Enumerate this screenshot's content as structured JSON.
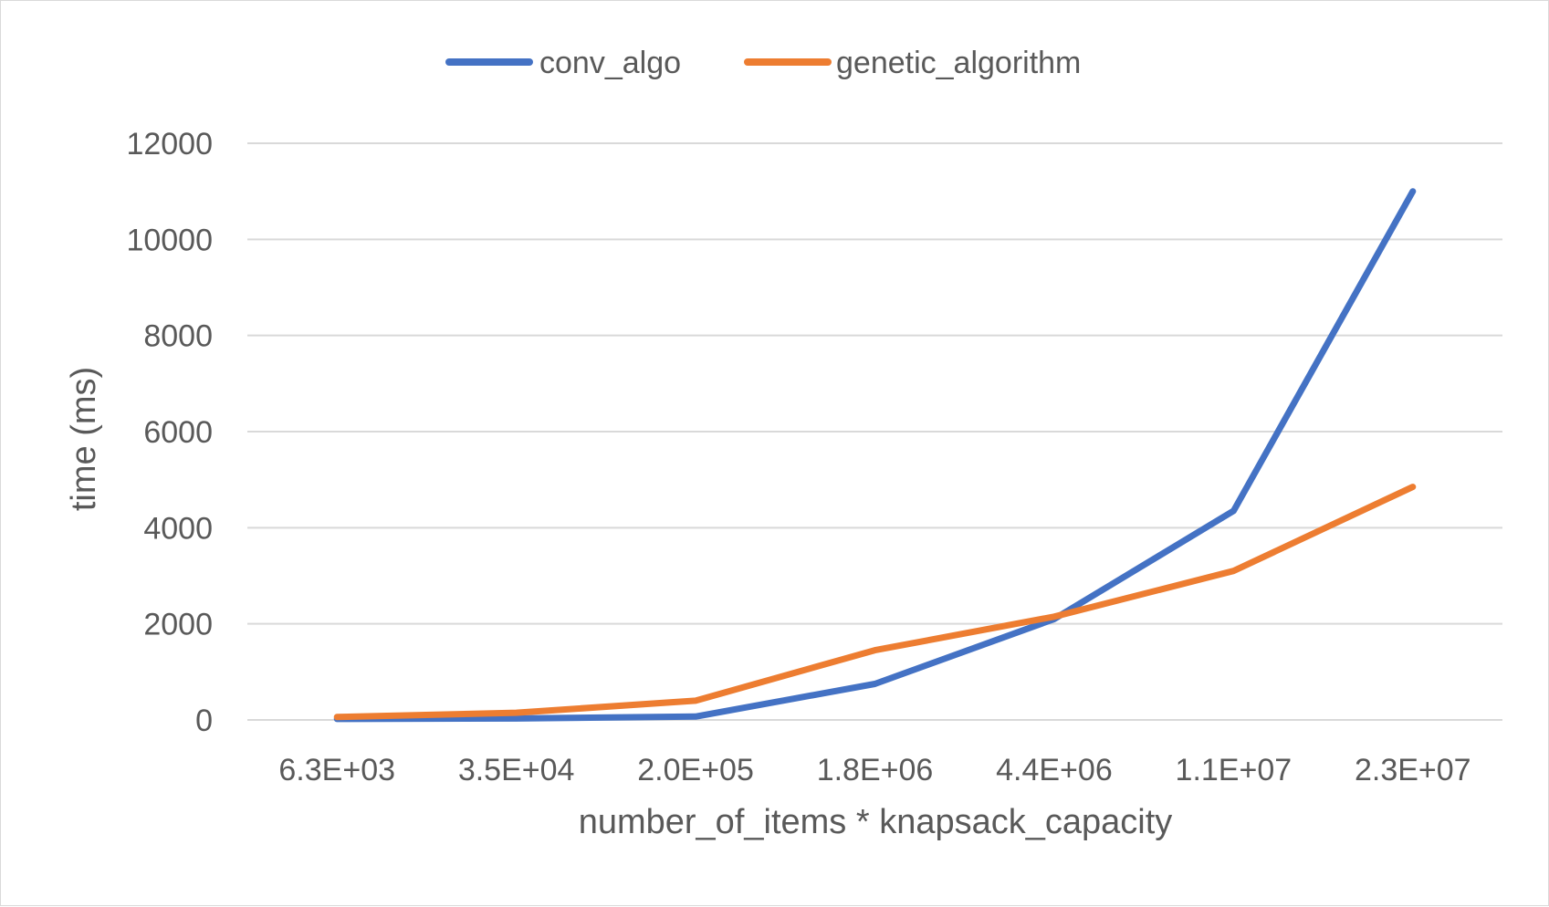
{
  "chart_data": {
    "type": "line",
    "title": "",
    "xlabel": "number_of_items * knapsack_capacity",
    "ylabel": "time (ms)",
    "categories": [
      "6.3E+03",
      "3.5E+04",
      "2.0E+05",
      "1.8E+06",
      "4.4E+06",
      "1.1E+07",
      "2.3E+07"
    ],
    "ylim": [
      0,
      12000
    ],
    "yticks": [
      0,
      2000,
      4000,
      6000,
      8000,
      10000,
      12000
    ],
    "yticks_labels": [
      "0",
      "2000",
      "4000",
      "6000",
      "8000",
      "10000",
      "12000"
    ],
    "grid": true,
    "legend_position": "top",
    "series": [
      {
        "name": "conv_algo",
        "color": "#4472C4",
        "values": [
          20,
          30,
          70,
          750,
          2100,
          4350,
          11000
        ]
      },
      {
        "name": "genetic_algorithm",
        "color": "#ED7D31",
        "values": [
          60,
          150,
          400,
          1450,
          2150,
          3100,
          4850
        ]
      }
    ]
  }
}
